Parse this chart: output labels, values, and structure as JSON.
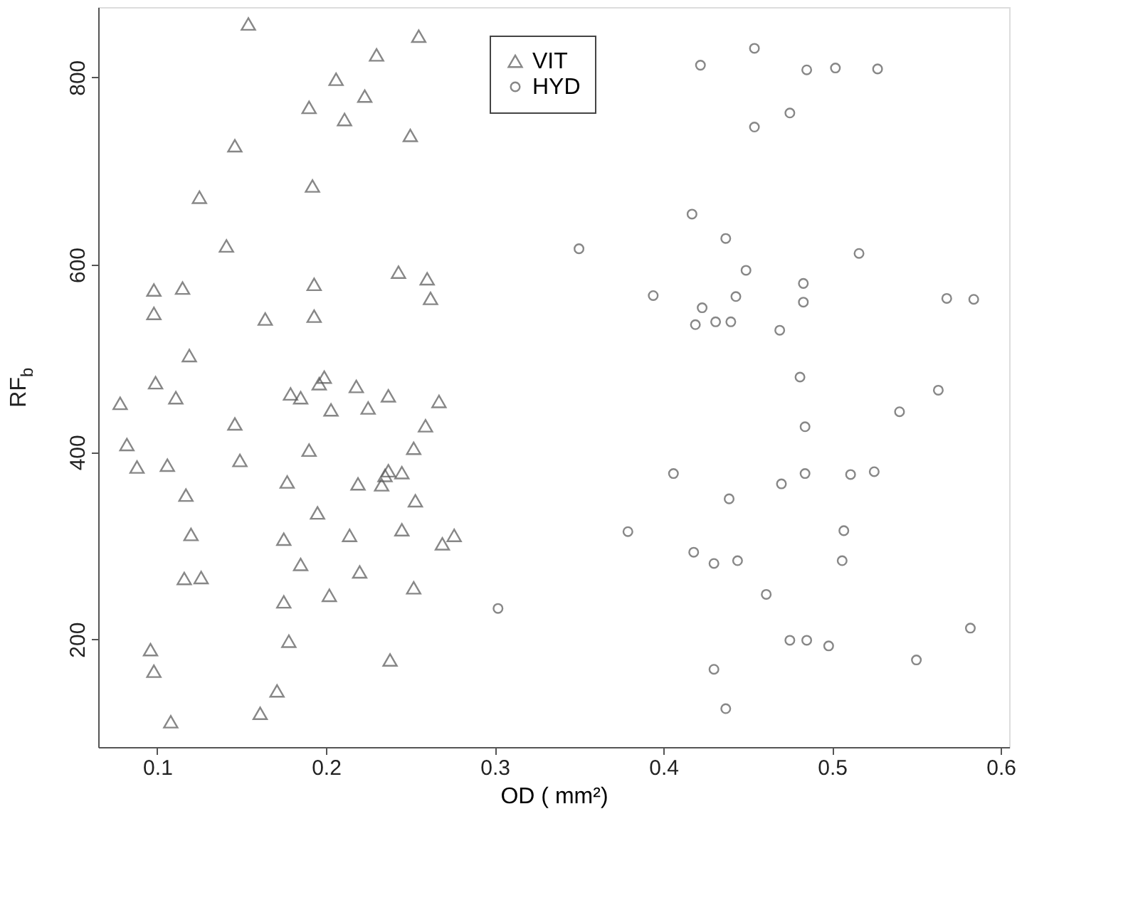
{
  "chart_data": {
    "type": "scatter",
    "xlabel": "OD ( mm²)",
    "ylabel": "RF$_{b}$",
    "xlim": [
      0.065,
      0.605
    ],
    "ylim": [
      85,
      875
    ],
    "xticks": [
      0.1,
      0.2,
      0.3,
      0.4,
      0.5,
      0.6
    ],
    "yticks": [
      200,
      400,
      600,
      800
    ],
    "grid": false,
    "legend": "top",
    "series": [
      {
        "name": "VIT",
        "color": "#555555",
        "marker": "triangle",
        "x": [
          0.154,
          0.23,
          0.206,
          0.223,
          0.19,
          0.211,
          0.146,
          0.192,
          0.125,
          0.141,
          0.098,
          0.115,
          0.193,
          0.098,
          0.164,
          0.193,
          0.119,
          0.099,
          0.078,
          0.111,
          0.146,
          0.082,
          0.088,
          0.106,
          0.149,
          0.117,
          0.12,
          0.116,
          0.126,
          0.096,
          0.098,
          0.108,
          0.161,
          0.171,
          0.178,
          0.175,
          0.202,
          0.185,
          0.22,
          0.175,
          0.214,
          0.195,
          0.177,
          0.219,
          0.19,
          0.179,
          0.185,
          0.196,
          0.218,
          0.203,
          0.225,
          0.199,
          0.267,
          0.259,
          0.252,
          0.245,
          0.253,
          0.245,
          0.269,
          0.276,
          0.252,
          0.255,
          0.26,
          0.262,
          0.243,
          0.25,
          0.237,
          0.233,
          0.235,
          0.237,
          0.238
        ],
        "values": [
          857,
          824,
          798,
          780,
          768,
          755,
          727,
          684,
          672,
          620,
          573,
          575,
          579,
          548,
          542,
          545,
          503,
          474,
          452,
          458,
          430,
          408,
          384,
          386,
          391,
          354,
          312,
          265,
          266,
          189,
          166,
          112,
          121,
          145,
          198,
          240,
          247,
          280,
          272,
          307,
          311,
          335,
          368,
          366,
          402,
          462,
          458,
          473,
          470,
          445,
          447,
          480,
          454,
          428,
          404,
          378,
          348,
          317,
          302,
          311,
          255,
          844,
          585,
          564,
          592,
          738,
          460,
          365,
          375,
          380,
          178
        ]
      },
      {
        "name": "HYD",
        "color": "#555555",
        "marker": "circle",
        "x": [
          0.422,
          0.454,
          0.454,
          0.417,
          0.437,
          0.35,
          0.449,
          0.394,
          0.443,
          0.423,
          0.419,
          0.431,
          0.44,
          0.302,
          0.379,
          0.406,
          0.439,
          0.418,
          0.43,
          0.444,
          0.43,
          0.437,
          0.485,
          0.502,
          0.527,
          0.475,
          0.516,
          0.483,
          0.483,
          0.469,
          0.481,
          0.484,
          0.54,
          0.563,
          0.568,
          0.584,
          0.484,
          0.47,
          0.511,
          0.525,
          0.507,
          0.506,
          0.461,
          0.475,
          0.485,
          0.498,
          0.55,
          0.582
        ],
        "values": [
          813,
          831,
          747,
          654,
          628,
          617,
          594,
          567,
          566,
          554,
          536,
          539,
          539,
          233,
          315,
          377,
          350,
          293,
          281,
          284,
          168,
          126,
          808,
          810,
          809,
          762,
          612,
          580,
          560,
          530,
          480,
          427,
          443,
          466,
          564,
          563,
          377,
          366,
          376,
          379,
          316,
          284,
          248,
          199,
          199,
          193,
          178,
          212
        ]
      }
    ]
  }
}
